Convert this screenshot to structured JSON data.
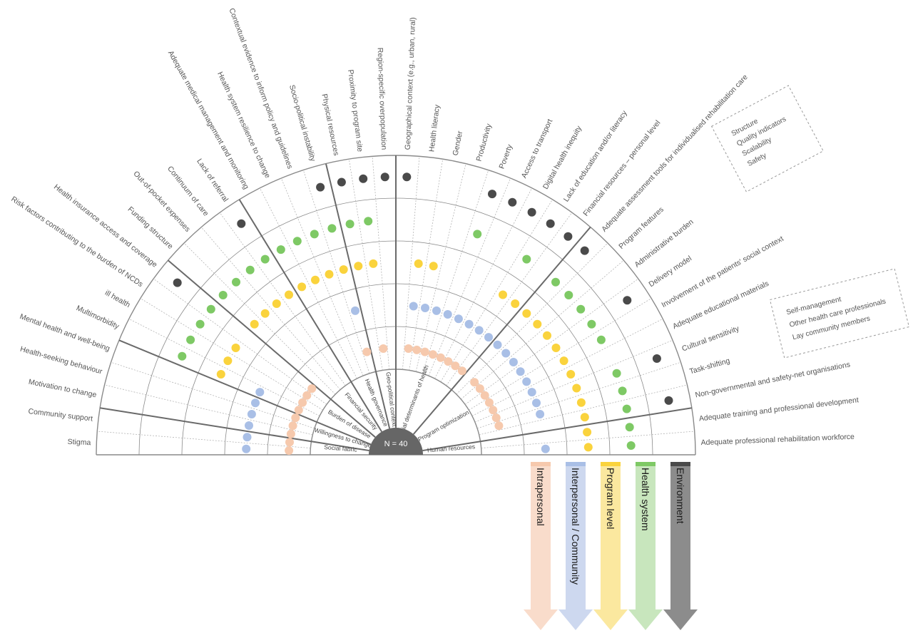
{
  "center_label": "N = 40",
  "left_factors": [
    "Stigma",
    "Community support",
    "Motivation to change",
    "Health-seeking behaviour",
    "Mental health and well-being",
    "Multimorbidity",
    "ill health",
    "Risk factors contributing to the burden of NCDs",
    "Health insurance access and coverage",
    "Funding structure",
    "Out-of-pocket expenses",
    "Continuum of care",
    "Lack of referral",
    "Adequate medical management and monitoring",
    "Health system resilience to change",
    "Contextual evidence to inform policy and guidelines",
    "Socio-political instability",
    "Physical resources",
    "Proximity to program site",
    "Region-specific overpopulation"
  ],
  "right_factors": [
    "Geographical context (e.g., urban, rural)",
    "Health literacy",
    "Gender",
    "Productivity",
    "Poverty",
    "Access to transport",
    "Digital health inequity",
    "Lack of education and/or literacy",
    "Financial resources – personal level",
    "Adequate assessment tools for individualised rehabilitation care",
    "Program features",
    "Administrative burden",
    "Delivery model",
    "Involvement of the patients' social context",
    "Adequate educational materials",
    "Cultural sensitivity",
    "Task-shifting",
    "Non-governmental and safety-net organisations",
    "Adequate training and professional development",
    "Adequate professional rehabilitation workforce"
  ],
  "domains": [
    "Social fabric",
    "Willingness to change",
    "Burden of disease",
    "Financial security",
    "Health governance",
    "Geo-political context",
    "Social determinants of health",
    "Program optimization",
    "Human resources"
  ],
  "legend_top": [
    "Structure",
    "Quality indicators",
    "Scalability",
    "Safety"
  ],
  "legend_mid": [
    "Self-management",
    "Other health care professionals",
    "Lay community members"
  ],
  "levels": [
    {
      "name": "Intrapersonal",
      "color": "#f6c9ad",
      "arrow_color": "#f9dccb"
    },
    {
      "name": "Interpersonal / Community",
      "color": "#a9bfe6",
      "arrow_color": "#cdd8ef"
    },
    {
      "name": "Program level",
      "color": "#fad33d",
      "arrow_color": "#fbe89f"
    },
    {
      "name": "Health system",
      "color": "#7ec965",
      "arrow_color": "#c8e6bd"
    },
    {
      "name": "Environment",
      "color": "#4a4a4a",
      "arrow_color": "#8c8c8c"
    }
  ],
  "dots_per_factor": [
    {
      "factor": "Stigma",
      "levels": [
        0,
        1
      ]
    },
    {
      "factor": "Community support",
      "levels": [
        0,
        1
      ]
    },
    {
      "factor": "Motivation to change",
      "levels": [
        0,
        1
      ]
    },
    {
      "factor": "Health-seeking behaviour",
      "levels": [
        0,
        1
      ]
    },
    {
      "factor": "Mental health and well-being",
      "levels": [
        0,
        1
      ]
    },
    {
      "factor": "Multimorbidity",
      "levels": [
        0,
        1,
        2,
        3
      ]
    },
    {
      "factor": "ill health",
      "levels": [
        0,
        2,
        3
      ]
    },
    {
      "factor": "Risk factors contributing to the burden of NCDs",
      "levels": [
        0,
        2,
        3
      ]
    },
    {
      "factor": "Health insurance access and coverage",
      "levels": [
        0,
        3,
        4
      ]
    },
    {
      "factor": "Funding structure",
      "levels": [
        2,
        3
      ]
    },
    {
      "factor": "Out-of-pocket expenses",
      "levels": [
        2,
        3
      ]
    },
    {
      "factor": "Continuum of care",
      "levels": [
        2,
        3
      ]
    },
    {
      "factor": "Lack of referral",
      "levels": [
        2,
        3,
        4
      ]
    },
    {
      "factor": "Adequate medical management and monitoring",
      "levels": [
        2,
        3
      ]
    },
    {
      "factor": "Health system resilience to change",
      "levels": [
        2,
        3
      ]
    },
    {
      "factor": "Contextual evidence to inform policy and guidelines",
      "levels": [
        2,
        3
      ]
    },
    {
      "factor": "Socio-political instability",
      "levels": [
        0,
        1,
        2,
        3,
        4
      ]
    },
    {
      "factor": "Physical resources",
      "levels": [
        2,
        3,
        4
      ]
    },
    {
      "factor": "Proximity to program site",
      "levels": [
        0,
        2,
        3,
        4
      ]
    },
    {
      "factor": "Region-specific overpopulation",
      "levels": [
        4
      ]
    },
    {
      "factor": "Geographical context (e.g., urban, rural)",
      "levels": [
        4
      ]
    },
    {
      "factor": "Health literacy",
      "levels": [
        0,
        1,
        2
      ]
    },
    {
      "factor": "Gender",
      "levels": [
        0,
        1,
        2
      ]
    },
    {
      "factor": "Productivity",
      "levels": [
        0,
        1
      ]
    },
    {
      "factor": "Poverty",
      "levels": [
        0,
        1,
        3,
        4
      ]
    },
    {
      "factor": "Access to transport",
      "levels": [
        0,
        1,
        4
      ]
    },
    {
      "factor": "Digital health inequity",
      "levels": [
        0,
        1,
        4
      ]
    },
    {
      "factor": "Lack of education and/or literacy",
      "levels": [
        0,
        1,
        2,
        3,
        4
      ]
    },
    {
      "factor": "Financial resources – personal level",
      "levels": [
        0,
        1,
        2,
        4
      ]
    },
    {
      "factor": "Adequate assessment tools for individualised rehabilitation care",
      "levels": [
        1,
        2,
        3,
        4
      ]
    },
    {
      "factor": "Program features",
      "levels": [
        0,
        1,
        2,
        3
      ]
    },
    {
      "factor": "Administrative burden",
      "levels": [
        0,
        1,
        2,
        3
      ]
    },
    {
      "factor": "Delivery model",
      "levels": [
        0,
        1,
        2,
        3,
        4
      ]
    },
    {
      "factor": "Involvement of the patients' social context",
      "levels": [
        0,
        1,
        2,
        3
      ]
    },
    {
      "factor": "Adequate educational materials",
      "levels": [
        0,
        1,
        2
      ]
    },
    {
      "factor": "Cultural sensitivity",
      "levels": [
        0,
        1,
        2,
        3,
        4
      ]
    },
    {
      "factor": "Task-shifting",
      "levels": [
        0,
        1,
        2,
        3
      ]
    },
    {
      "factor": "Non-governmental and safety-net organisations",
      "levels": [
        2,
        3,
        4
      ]
    },
    {
      "factor": "Adequate training and professional development",
      "levels": [
        2,
        3
      ]
    },
    {
      "factor": "Adequate professional rehabilitation workforce",
      "levels": [
        1,
        2,
        3
      ]
    }
  ]
}
